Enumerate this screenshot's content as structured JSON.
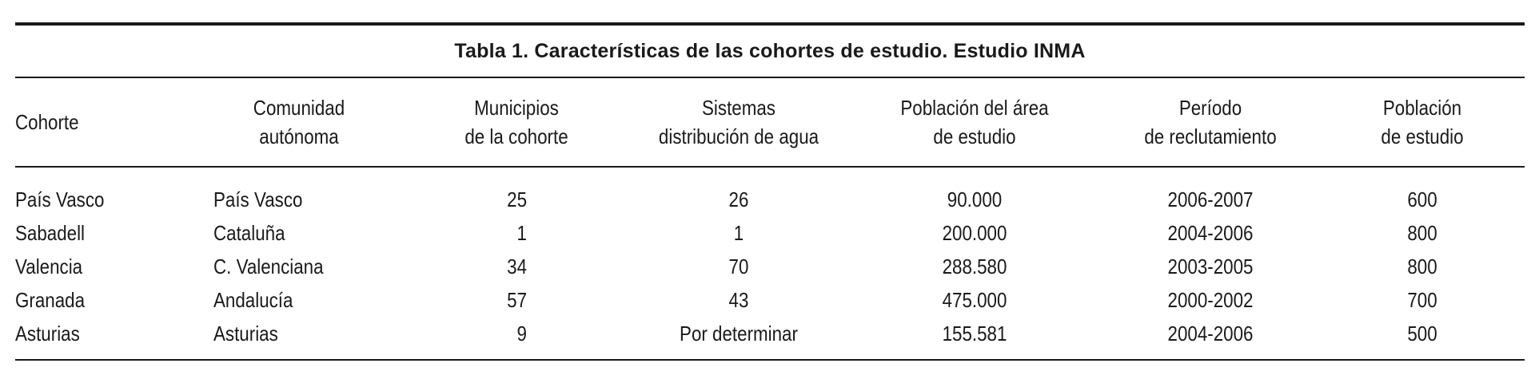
{
  "table": {
    "caption": "Tabla 1. Características de las cohortes de estudio. Estudio INMA",
    "headers": [
      [
        "Cohorte"
      ],
      [
        "Comunidad",
        "autónoma"
      ],
      [
        "Municipios",
        "de la cohorte"
      ],
      [
        "Sistemas",
        "distribución de agua"
      ],
      [
        "Población del área",
        "de estudio"
      ],
      [
        "Período",
        "de reclutamiento"
      ],
      [
        "Población",
        "de estudio"
      ]
    ],
    "rows": [
      [
        "País Vasco",
        "País Vasco",
        "25",
        "26",
        "90.000",
        "2006-2007",
        "600"
      ],
      [
        "Sabadell",
        "Cataluña",
        "1",
        "1",
        "200.000",
        "2004-2006",
        "800"
      ],
      [
        "Valencia",
        "C. Valenciana",
        "34",
        "70",
        "288.580",
        "2003-2005",
        "800"
      ],
      [
        "Granada",
        "Andalucía",
        "57",
        "43",
        "475.000",
        "2000-2002",
        "700"
      ],
      [
        "Asturias",
        "Asturias",
        "9",
        "Por determinar",
        "155.581",
        "2004-2006",
        "500"
      ]
    ]
  }
}
